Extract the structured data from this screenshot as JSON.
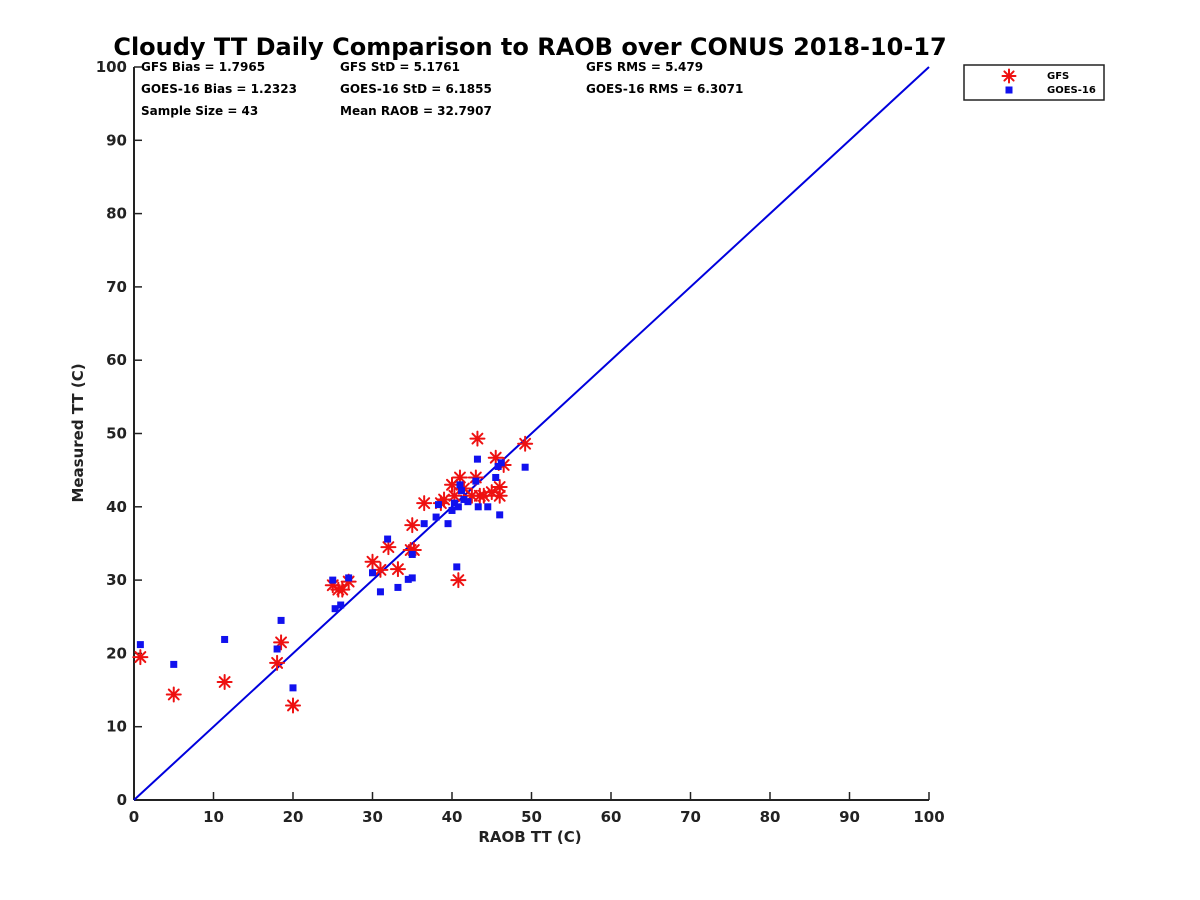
{
  "chart_data": {
    "type": "scatter",
    "title": "Cloudy TT Daily Comparison to RAOB over CONUS 2018-10-17",
    "xlabel": "RAOB TT (C)",
    "ylabel": "Measured TT (C)",
    "xlim": [
      0,
      100
    ],
    "ylim": [
      0,
      100
    ],
    "xticks": [
      "0",
      "10",
      "20",
      "30",
      "40",
      "50",
      "60",
      "70",
      "80",
      "90",
      "100"
    ],
    "yticks": [
      "0",
      "10",
      "20",
      "30",
      "40",
      "50",
      "60",
      "70",
      "80",
      "90",
      "100"
    ],
    "grid": false,
    "legend_position": "top-right outside",
    "reference_line": {
      "name": "1:1 line",
      "x": [
        0,
        100
      ],
      "y": [
        0,
        100
      ],
      "color": "#0000dd"
    },
    "stats": [
      [
        "GFS Bias = 1.7965",
        "GFS StD = 5.1761",
        "GFS RMS = 5.479"
      ],
      [
        "GOES-16 Bias = 1.2323",
        "GOES-16 StD = 6.1855",
        "GOES-16 RMS = 6.3071"
      ],
      [
        "Sample Size = 43",
        "Mean RAOB = 32.7907",
        ""
      ]
    ],
    "series": [
      {
        "name": "GFS",
        "marker": "asterisk",
        "color": "#ee1111",
        "points": [
          [
            0.8,
            19.5
          ],
          [
            5.0,
            14.4
          ],
          [
            11.4,
            16.1
          ],
          [
            18.0,
            18.7
          ],
          [
            18.5,
            21.5
          ],
          [
            20.0,
            12.9
          ],
          [
            25.0,
            29.3
          ],
          [
            25.7,
            28.7
          ],
          [
            26.2,
            28.7
          ],
          [
            27.0,
            29.8
          ],
          [
            30.0,
            32.5
          ],
          [
            31.0,
            31.4
          ],
          [
            32.0,
            34.5
          ],
          [
            33.2,
            31.5
          ],
          [
            34.8,
            34.1
          ],
          [
            35.0,
            37.5
          ],
          [
            35.2,
            34.1
          ],
          [
            36.5,
            40.5
          ],
          [
            38.6,
            40.5
          ],
          [
            39.0,
            41.0
          ],
          [
            40.0,
            43.0
          ],
          [
            40.3,
            41.5
          ],
          [
            40.8,
            30.0
          ],
          [
            41.0,
            44.0
          ],
          [
            41.5,
            42.5
          ],
          [
            42.5,
            41.5
          ],
          [
            43.0,
            44.0
          ],
          [
            43.2,
            49.3
          ],
          [
            43.5,
            41.5
          ],
          [
            44.0,
            41.5
          ],
          [
            45.0,
            42.0
          ],
          [
            45.5,
            46.7
          ],
          [
            46.0,
            41.5
          ],
          [
            46.0,
            42.7
          ],
          [
            46.5,
            45.7
          ],
          [
            49.2,
            48.6
          ]
        ]
      },
      {
        "name": "GOES-16",
        "marker": "square",
        "color": "#1111ee",
        "points": [
          [
            0.8,
            21.2
          ],
          [
            5.0,
            18.5
          ],
          [
            11.4,
            21.9
          ],
          [
            18.0,
            20.6
          ],
          [
            18.5,
            24.5
          ],
          [
            20.0,
            15.3
          ],
          [
            25.0,
            30.0
          ],
          [
            25.3,
            26.1
          ],
          [
            26.0,
            26.6
          ],
          [
            27.0,
            30.3
          ],
          [
            30.0,
            31.0
          ],
          [
            31.0,
            28.4
          ],
          [
            31.9,
            35.6
          ],
          [
            33.2,
            29.0
          ],
          [
            34.5,
            30.1
          ],
          [
            35.0,
            30.3
          ],
          [
            35.0,
            33.5
          ],
          [
            36.5,
            37.7
          ],
          [
            38.0,
            38.6
          ],
          [
            38.3,
            40.3
          ],
          [
            39.5,
            37.7
          ],
          [
            40.0,
            39.5
          ],
          [
            40.3,
            40.5
          ],
          [
            40.6,
            31.8
          ],
          [
            40.8,
            40.0
          ],
          [
            41.0,
            43.0
          ],
          [
            41.2,
            42.2
          ],
          [
            41.5,
            41.0
          ],
          [
            42.0,
            40.7
          ],
          [
            43.0,
            43.5
          ],
          [
            43.2,
            46.5
          ],
          [
            43.3,
            40.0
          ],
          [
            44.5,
            40.0
          ],
          [
            45.5,
            44.0
          ],
          [
            45.8,
            45.5
          ],
          [
            46.0,
            38.9
          ],
          [
            46.2,
            46.0
          ],
          [
            49.2,
            45.4
          ]
        ]
      }
    ]
  }
}
